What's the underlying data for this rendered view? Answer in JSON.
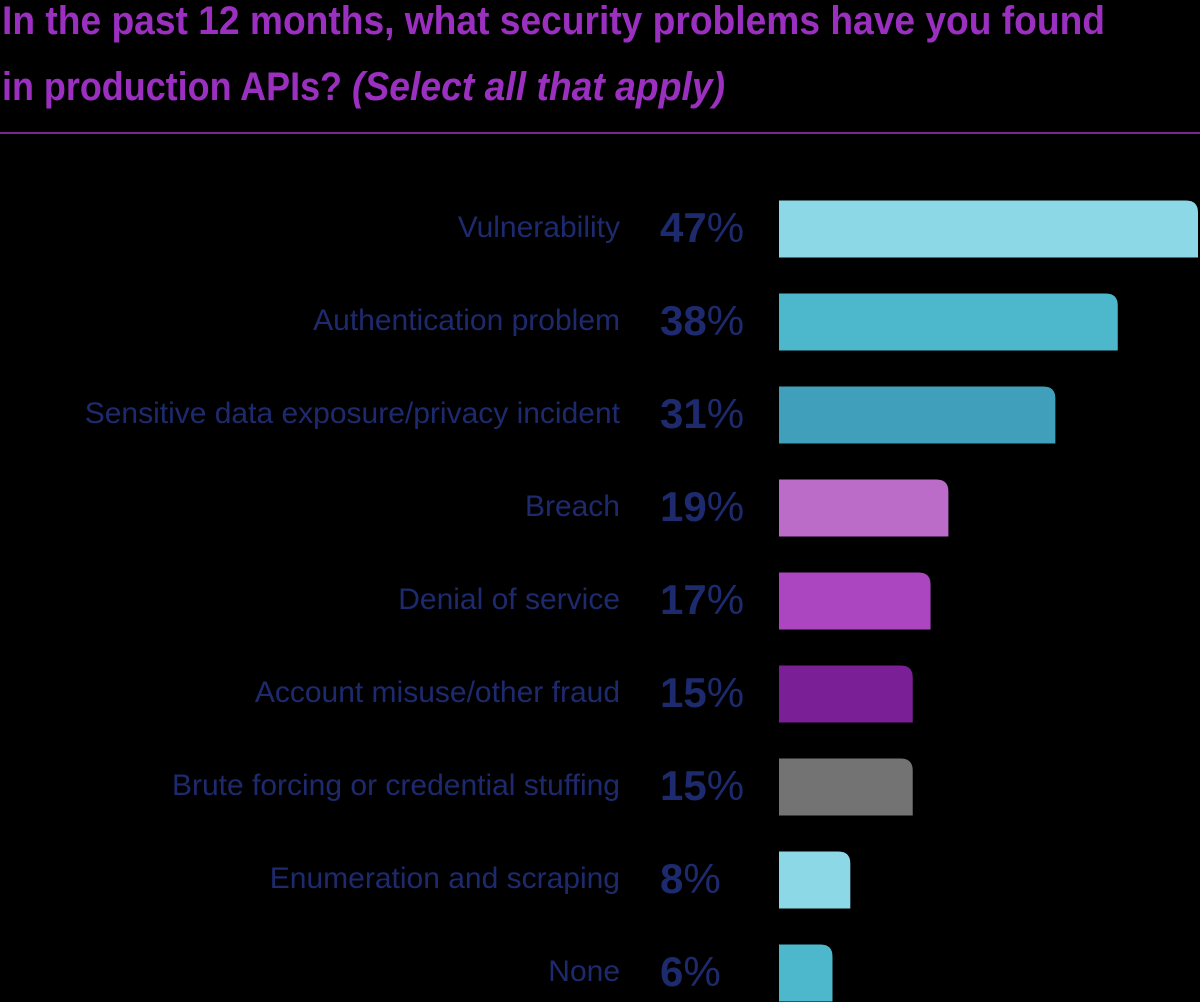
{
  "chart_data": {
    "type": "bar",
    "title": [
      "In the past 12 months, what security problems have you found",
      "in production APIs?"
    ],
    "note": "(Select all that apply)",
    "categories": [
      "Vulnerability",
      "Authentication problem",
      "Sensitive data exposure/privacy incident",
      "Breach",
      "Denial of service",
      "Account misuse/other fraud",
      "Brute forcing or credential stuffing",
      "Enumeration and scraping",
      "None"
    ],
    "values": [
      47,
      38,
      31,
      19,
      17,
      15,
      15,
      8,
      6
    ],
    "value_labels": [
      "47%",
      "38%",
      "31%",
      "19%",
      "17%",
      "15%",
      "15%",
      "8%",
      "6%"
    ],
    "colors": [
      "#8dd8e6",
      "#4db8cc",
      "#40a0bb",
      "#bb6cc8",
      "#ac46c0",
      "#7a1f96",
      "#737373",
      "#8dd8e6",
      "#4db8cc"
    ]
  }
}
